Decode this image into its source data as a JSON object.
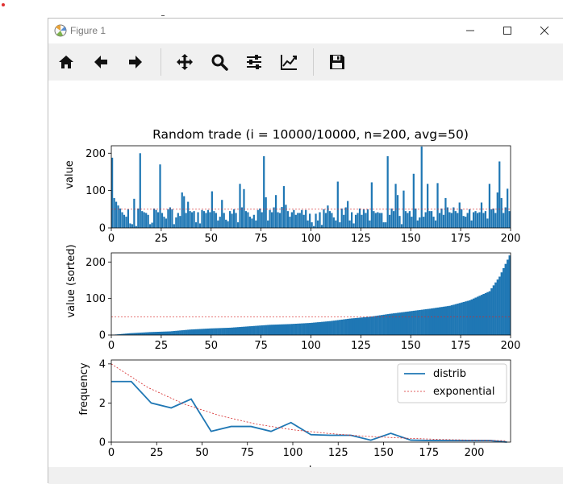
{
  "window": {
    "title": "Figure 1"
  },
  "toolbar": {
    "buttons": [
      {
        "name": "home-icon"
      },
      {
        "name": "back-arrow-icon"
      },
      {
        "name": "forward-arrow-icon"
      },
      {
        "name": "pan-icon"
      },
      {
        "name": "zoom-icon"
      },
      {
        "name": "subplots-config-icon"
      },
      {
        "name": "edit-axes-icon"
      },
      {
        "name": "save-icon"
      }
    ]
  },
  "colors": {
    "bar": "#1f77b4",
    "avg_line": "#d62728",
    "toolbar_bg": "#f0f0f0"
  },
  "chart_data": [
    {
      "type": "bar",
      "title": "Random trade (i = 10000/10000, n=200, avg=50)",
      "xlabel": "",
      "ylabel": "value",
      "xlim": [
        0,
        200
      ],
      "ylim": [
        0,
        220
      ],
      "xticks": [
        0,
        25,
        50,
        75,
        100,
        125,
        150,
        175,
        200
      ],
      "yticks": [
        0,
        100,
        200
      ],
      "avg_line": 50,
      "values": [
        188,
        80,
        70,
        60,
        52,
        42,
        35,
        30,
        50,
        12,
        10,
        78,
        5,
        52,
        200,
        45,
        42,
        40,
        35,
        10,
        14,
        52,
        48,
        42,
        170,
        40,
        30,
        25,
        50,
        55,
        50,
        10,
        28,
        40,
        32,
        95,
        85,
        40,
        70,
        45,
        42,
        45,
        15,
        42,
        12,
        48,
        45,
        40,
        48,
        42,
        98,
        45,
        40,
        20,
        30,
        75,
        40,
        22,
        18,
        45,
        38,
        50,
        40,
        15,
        118,
        55,
        104,
        45,
        42,
        30,
        25,
        35,
        20,
        48,
        52,
        42,
        192,
        82,
        20,
        48,
        42,
        55,
        88,
        42,
        40,
        56,
        112,
        62,
        45,
        30,
        42,
        48,
        35,
        40,
        40,
        48,
        35,
        48,
        20,
        38,
        15,
        5,
        38,
        20,
        42,
        8,
        50,
        40,
        60,
        45,
        40,
        28,
        20,
        124,
        15,
        52,
        35,
        55,
        72,
        20,
        42,
        12,
        35,
        40,
        52,
        35,
        50,
        40,
        50,
        20,
        122,
        45,
        40,
        42,
        40,
        40,
        15,
        15,
        192,
        35,
        52,
        45,
        118,
        88,
        32,
        10,
        100,
        45,
        40,
        45,
        30,
        145,
        52,
        20,
        28,
        218,
        30,
        42,
        118,
        45,
        45,
        30,
        20,
        120,
        40,
        52,
        35,
        80,
        55,
        42,
        40,
        55,
        45,
        40,
        68,
        50,
        32,
        30,
        40,
        50,
        20,
        42,
        45,
        40,
        42,
        68,
        40,
        45,
        25,
        118,
        50,
        52,
        40,
        95,
        178,
        80,
        40,
        55,
        105,
        45
      ]
    },
    {
      "type": "bar",
      "xlabel": "",
      "ylabel": "value (sorted)",
      "xlim": [
        0,
        200
      ],
      "ylim": [
        0,
        225
      ],
      "xticks": [
        0,
        25,
        50,
        75,
        100,
        125,
        150,
        175,
        200
      ],
      "yticks": [
        0,
        100,
        200
      ],
      "avg_line": 50,
      "quantiles": [
        [
          0,
          0
        ],
        [
          10,
          5
        ],
        [
          20,
          8
        ],
        [
          30,
          10
        ],
        [
          40,
          15
        ],
        [
          50,
          18
        ],
        [
          60,
          20
        ],
        [
          70,
          24
        ],
        [
          80,
          28
        ],
        [
          90,
          30
        ],
        [
          100,
          33
        ],
        [
          110,
          38
        ],
        [
          120,
          45
        ],
        [
          130,
          50
        ],
        [
          140,
          58
        ],
        [
          150,
          65
        ],
        [
          160,
          72
        ],
        [
          170,
          80
        ],
        [
          180,
          95
        ],
        [
          190,
          120
        ],
        [
          195,
          160
        ],
        [
          200,
          218
        ]
      ]
    },
    {
      "type": "line",
      "xlabel": "value",
      "ylabel": "frequency",
      "xlim": [
        0,
        220
      ],
      "ylim": [
        0,
        4.2
      ],
      "xticks": [
        0,
        25,
        50,
        75,
        100,
        125,
        150,
        175,
        200
      ],
      "yticks": [
        0,
        2,
        4
      ],
      "legend_position": "top-right",
      "series": [
        {
          "name": "distrib",
          "style": "solid",
          "x": [
            0,
            11,
            22,
            33,
            44,
            55,
            66,
            77,
            88,
            99,
            110,
            121,
            132,
            143,
            154,
            165,
            176,
            187,
            198,
            209,
            218
          ],
          "y": [
            3.1,
            3.1,
            2.0,
            1.75,
            2.2,
            0.55,
            0.8,
            0.8,
            0.55,
            1.0,
            0.38,
            0.35,
            0.35,
            0.1,
            0.45,
            0.1,
            0.08,
            0.08,
            0.08,
            0.08,
            0.0
          ]
        },
        {
          "name": "exponential",
          "style": "dashed",
          "x": [
            0,
            20,
            40,
            60,
            80,
            100,
            120,
            140,
            160,
            180,
            200,
            218
          ],
          "y": [
            4.0,
            2.8,
            1.95,
            1.35,
            0.92,
            0.63,
            0.44,
            0.3,
            0.21,
            0.14,
            0.1,
            0.07
          ]
        }
      ]
    }
  ]
}
